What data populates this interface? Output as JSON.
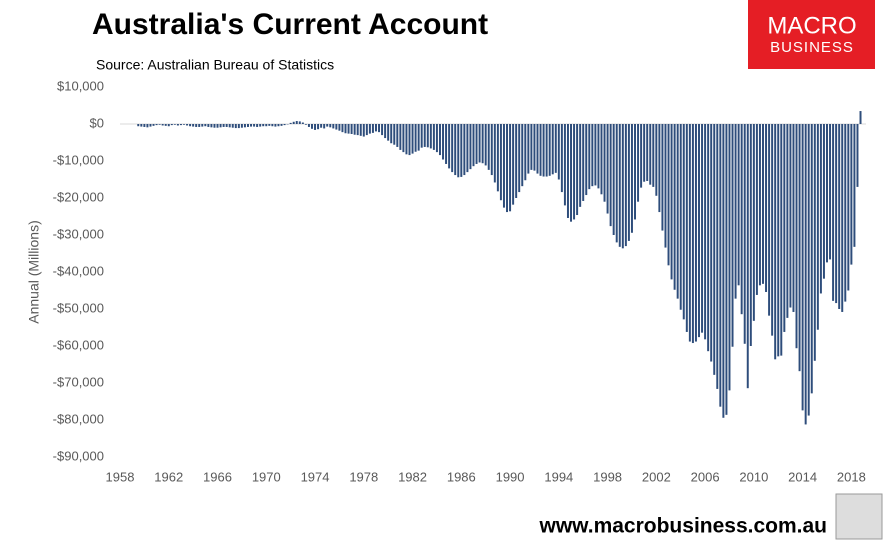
{
  "chart_data": {
    "type": "bar",
    "title": "Australia's Current Account",
    "subtitle": "Source: Australian Bureau of Statistics",
    "y_label": "Annual (Millions)",
    "logo": [
      "MACRO",
      "BUSINESS"
    ],
    "footer": "www.macrobusiness.com.au",
    "color": "#2e4d7b",
    "grid": false,
    "xlim": [
      1958,
      2019.2
    ],
    "xticks": [
      1958,
      1962,
      1966,
      1970,
      1974,
      1978,
      1982,
      1986,
      1990,
      1994,
      1998,
      2002,
      2006,
      2010,
      2014,
      2018
    ],
    "ylim": [
      -90000,
      10000
    ],
    "yticks": [
      {
        "value": 10000,
        "label": "$10,000"
      },
      {
        "value": 0,
        "label": "$0"
      },
      {
        "value": -10000,
        "label": "-$10,000"
      },
      {
        "value": -20000,
        "label": "-$20,000"
      },
      {
        "value": -30000,
        "label": "-$30,000"
      },
      {
        "value": -40000,
        "label": "-$40,000"
      },
      {
        "value": -50000,
        "label": "-$50,000"
      },
      {
        "value": -60000,
        "label": "-$60,000"
      },
      {
        "value": -70000,
        "label": "-$70,000"
      },
      {
        "value": -80000,
        "label": "-$80,000"
      },
      {
        "value": -90000,
        "label": "-$90,000"
      }
    ],
    "x": [
      1959.5,
      1959.75,
      1960,
      1960.25,
      1960.5,
      1960.75,
      1961,
      1961.25,
      1961.5,
      1961.75,
      1962,
      1962.25,
      1962.5,
      1962.75,
      1963,
      1963.25,
      1963.5,
      1963.75,
      1964,
      1964.25,
      1964.5,
      1964.75,
      1965,
      1965.25,
      1965.5,
      1965.75,
      1966,
      1966.25,
      1966.5,
      1966.75,
      1967,
      1967.25,
      1967.5,
      1967.75,
      1968,
      1968.25,
      1968.5,
      1968.75,
      1969,
      1969.25,
      1969.5,
      1969.75,
      1970,
      1970.25,
      1970.5,
      1970.75,
      1971,
      1971.25,
      1971.5,
      1971.75,
      1972,
      1972.25,
      1972.5,
      1972.75,
      1973,
      1973.25,
      1973.5,
      1973.75,
      1974,
      1974.25,
      1974.5,
      1974.75,
      1975,
      1975.25,
      1975.5,
      1975.75,
      1976,
      1976.25,
      1976.5,
      1976.75,
      1977,
      1977.25,
      1977.5,
      1977.75,
      1978,
      1978.25,
      1978.5,
      1978.75,
      1979,
      1979.25,
      1979.5,
      1979.75,
      1980,
      1980.25,
      1980.5,
      1980.75,
      1981,
      1981.25,
      1981.5,
      1981.75,
      1982,
      1982.25,
      1982.5,
      1982.75,
      1983,
      1983.25,
      1983.5,
      1983.75,
      1984,
      1984.25,
      1984.5,
      1984.75,
      1985,
      1985.25,
      1985.5,
      1985.75,
      1986,
      1986.25,
      1986.5,
      1986.75,
      1987,
      1987.25,
      1987.5,
      1987.75,
      1988,
      1988.25,
      1988.5,
      1988.75,
      1989,
      1989.25,
      1989.5,
      1989.75,
      1990,
      1990.25,
      1990.5,
      1990.75,
      1991,
      1991.25,
      1991.5,
      1991.75,
      1992,
      1992.25,
      1992.5,
      1992.75,
      1993,
      1993.25,
      1993.5,
      1993.75,
      1994,
      1994.25,
      1994.5,
      1994.75,
      1995,
      1995.25,
      1995.5,
      1995.75,
      1996,
      1996.25,
      1996.5,
      1996.75,
      1997,
      1997.25,
      1997.5,
      1997.75,
      1998,
      1998.25,
      1998.5,
      1998.75,
      1999,
      1999.25,
      1999.5,
      1999.75,
      2000,
      2000.25,
      2000.5,
      2000.75,
      2001,
      2001.25,
      2001.5,
      2001.75,
      2002,
      2002.25,
      2002.5,
      2002.75,
      2003,
      2003.25,
      2003.5,
      2003.75,
      2004,
      2004.25,
      2004.5,
      2004.75,
      2005,
      2005.25,
      2005.5,
      2005.75,
      2006,
      2006.25,
      2006.5,
      2006.75,
      2007,
      2007.25,
      2007.5,
      2007.75,
      2008,
      2008.25,
      2008.5,
      2008.75,
      2009,
      2009.25,
      2009.5,
      2009.75,
      2010,
      2010.25,
      2010.5,
      2010.75,
      2011,
      2011.25,
      2011.5,
      2011.75,
      2012,
      2012.25,
      2012.5,
      2012.75,
      2013,
      2013.25,
      2013.5,
      2013.75,
      2014,
      2014.25,
      2014.5,
      2014.75,
      2015,
      2015.25,
      2015.5,
      2015.75,
      2016,
      2016.25,
      2016.5,
      2016.75,
      2017,
      2017.25,
      2017.5,
      2017.75,
      2018,
      2018.25,
      2018.5,
      2018.75
    ],
    "values": [
      -600,
      -700,
      -800,
      -900,
      -700,
      -500,
      -300,
      -200,
      -400,
      -500,
      -600,
      -300,
      -200,
      -400,
      -300,
      -200,
      -400,
      -600,
      -700,
      -800,
      -800,
      -700,
      -600,
      -800,
      -900,
      -1000,
      -1000,
      -900,
      -800,
      -800,
      -900,
      -1000,
      -1100,
      -1100,
      -1000,
      -900,
      -800,
      -700,
      -700,
      -800,
      -700,
      -600,
      -600,
      -500,
      -600,
      -700,
      -600,
      -500,
      -300,
      -100,
      300,
      600,
      800,
      700,
      400,
      -200,
      -800,
      -1300,
      -1600,
      -1400,
      -1000,
      -1200,
      -700,
      -900,
      -1200,
      -1500,
      -1800,
      -2200,
      -2500,
      -2600,
      -2700,
      -2900,
      -3000,
      -3200,
      -3400,
      -3000,
      -2600,
      -2400,
      -2000,
      -2200,
      -3000,
      -3800,
      -4500,
      -5200,
      -5600,
      -6200,
      -7000,
      -7600,
      -8200,
      -8400,
      -8000,
      -7500,
      -7200,
      -6400,
      -6200,
      -6300,
      -6600,
      -7000,
      -7600,
      -8400,
      -9600,
      -10800,
      -12000,
      -13000,
      -13800,
      -14400,
      -14300,
      -13800,
      -13000,
      -12200,
      -11400,
      -10800,
      -10400,
      -10600,
      -11200,
      -12400,
      -13800,
      -15800,
      -18200,
      -20600,
      -22600,
      -23800,
      -23600,
      -21800,
      -20000,
      -18400,
      -16800,
      -15200,
      -13400,
      -12400,
      -12600,
      -13400,
      -14000,
      -14200,
      -14200,
      -14000,
      -13600,
      -13200,
      -15000,
      -18400,
      -22000,
      -25400,
      -26400,
      -25800,
      -24600,
      -22400,
      -20800,
      -19200,
      -17600,
      -16800,
      -16600,
      -17400,
      -19000,
      -21000,
      -24200,
      -27600,
      -30000,
      -32000,
      -33200,
      -33600,
      -33000,
      -31600,
      -29400,
      -25800,
      -21000,
      -17200,
      -15600,
      -15400,
      -16400,
      -17000,
      -19400,
      -23800,
      -28800,
      -33400,
      -38200,
      -42000,
      -44800,
      -47200,
      -50200,
      -52800,
      -56200,
      -58800,
      -59200,
      -58800,
      -57600,
      -56400,
      -58200,
      -61400,
      -64200,
      -67800,
      -71600,
      -76400,
      -79400,
      -78600,
      -72000,
      -60200,
      -47200,
      -43600,
      -51400,
      -59400,
      -71400,
      -60000,
      -53200,
      -46200,
      -43600,
      -43200,
      -45400,
      -51800,
      -57200,
      -63600,
      -62800,
      -62600,
      -56200,
      -52400,
      -49600,
      -50800,
      -60600,
      -66800,
      -77400,
      -81200,
      -78800,
      -72800,
      -64000,
      -55600,
      -45800,
      -41800,
      -37400,
      -36600,
      -47800,
      -48400,
      -50000,
      -50800,
      -48000,
      -45000,
      -38000,
      -33200,
      -17000,
      3500
    ]
  }
}
